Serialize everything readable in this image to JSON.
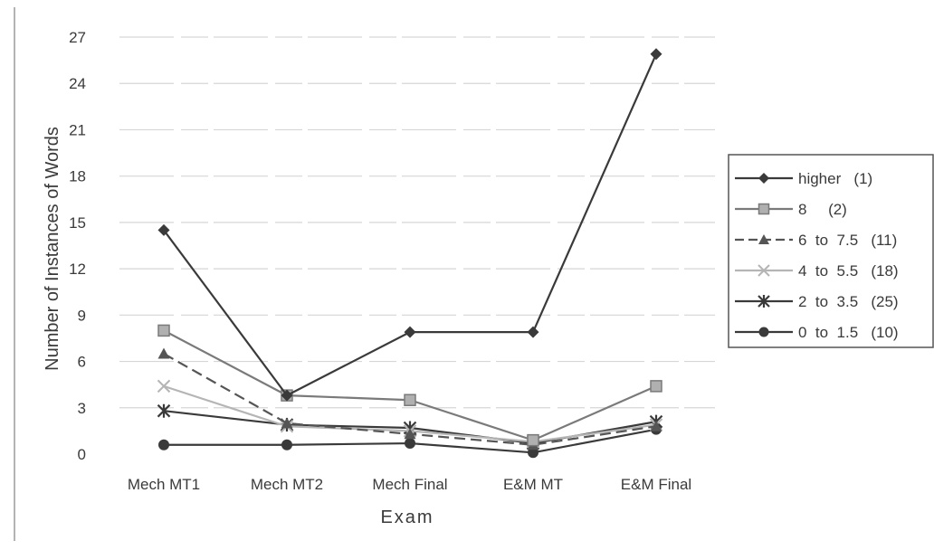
{
  "chart_data": {
    "type": "line",
    "xlabel": "Exam",
    "ylabel": "Number of Instances of Words",
    "categories": [
      "Mech MT1",
      "Mech MT2",
      "Mech Final",
      "E&M MT",
      "E&M Final"
    ],
    "ylim": [
      0,
      27
    ],
    "yticks": [
      "0",
      "3",
      "6",
      "9",
      "12",
      "15",
      "18",
      "21",
      "24",
      "27"
    ],
    "grid": true,
    "legend_position": "right",
    "series": [
      {
        "name": "higher   (1)",
        "values": [
          14.5,
          3.8,
          7.9,
          7.9,
          25.9
        ],
        "color": "#3a3a3a",
        "marker": "diamond",
        "dash": "solid"
      },
      {
        "name": "8     (2)",
        "values": [
          8.0,
          3.8,
          3.5,
          0.9,
          4.4
        ],
        "color": "#7a7a7a",
        "marker": "square",
        "dash": "solid"
      },
      {
        "name": "6  to  7.5   (11)",
        "values": [
          6.5,
          2.0,
          1.3,
          0.6,
          1.8
        ],
        "color": "#555555",
        "marker": "triangle",
        "dash": "dashed"
      },
      {
        "name": "4  to  5.5   (18)",
        "values": [
          4.4,
          1.8,
          1.5,
          0.8,
          1.9
        ],
        "color": "#b5b5b5",
        "marker": "x",
        "dash": "solid"
      },
      {
        "name": "2  to  3.5   (25)",
        "values": [
          2.8,
          1.9,
          1.7,
          0.7,
          2.1
        ],
        "color": "#3a3a3a",
        "marker": "star",
        "dash": "solid"
      },
      {
        "name": "0  to  1.5   (10)",
        "values": [
          0.6,
          0.6,
          0.7,
          0.1,
          1.6
        ],
        "color": "#3a3a3a",
        "marker": "circle",
        "dash": "solid"
      }
    ]
  }
}
